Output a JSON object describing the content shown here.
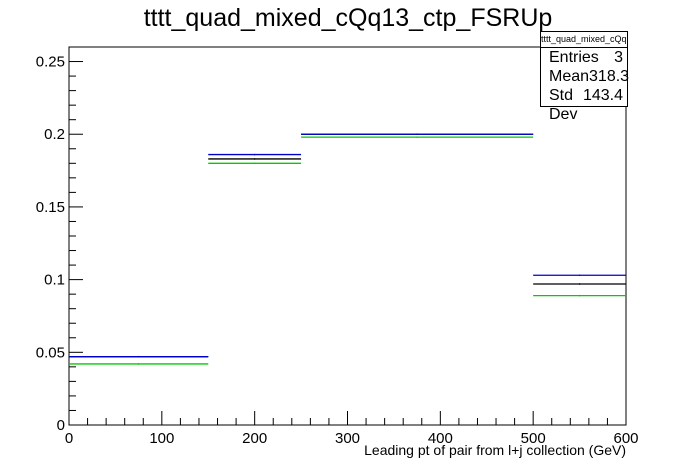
{
  "chart_data": {
    "type": "bar",
    "title": "tttt_quad_mixed_cQq13_ctp_FSRUp",
    "xlabel": "Leading pt of pair from l+j collection (GeV)",
    "ylabel": "",
    "xlim": [
      0,
      600
    ],
    "ylim": [
      0,
      0.26
    ],
    "x_ticks": [
      "0",
      "100",
      "200",
      "300",
      "400",
      "500",
      "600"
    ],
    "y_ticks": [
      "0",
      "0.05",
      "0.1",
      "0.15",
      "0.2",
      "0.25"
    ],
    "bins": [
      [
        0,
        150
      ],
      [
        150,
        250
      ],
      [
        250,
        500
      ],
      [
        500,
        600
      ]
    ],
    "series": [
      {
        "color": "#000000",
        "values": [
          0.047,
          0.183,
          0.2,
          0.097
        ]
      },
      {
        "color": "#0000cc",
        "values": [
          0.047,
          0.186,
          0.2,
          0.103
        ]
      },
      {
        "color": "#00cc00",
        "values": [
          0.042,
          0.18,
          0.198,
          0.089
        ]
      }
    ],
    "grid": false,
    "legend": "none",
    "stats_box": {
      "name": "tttt_quad_mixed_cQq13_ctp_FSRUp",
      "rows": [
        {
          "label": "Entries",
          "value": "3"
        },
        {
          "label": "Mean",
          "value": "318.3"
        },
        {
          "label": "Std Dev",
          "value": "143.4"
        }
      ]
    }
  }
}
